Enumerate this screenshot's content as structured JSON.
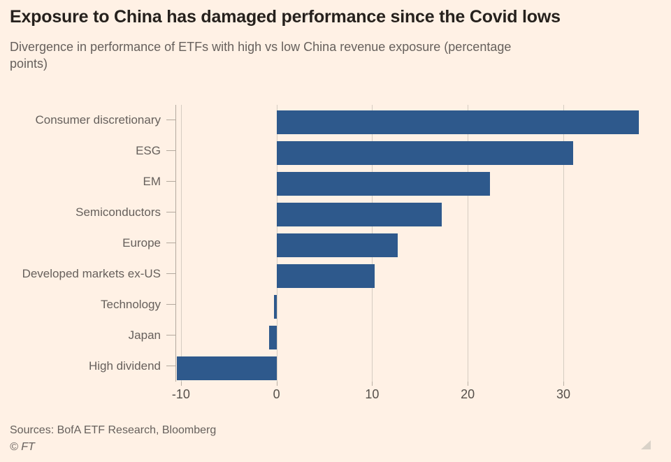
{
  "title": "Exposure to China has damaged performance since the Covid lows",
  "subtitle_lines": [
    "Divergence in performance of ETFs with high vs low China revenue exposure (percentage",
    "points)"
  ],
  "source": "Sources: BofA ETF Research, Bloomberg",
  "credit": "© FT",
  "colors": {
    "background": "#fff1e5",
    "bar": "#2e598c",
    "gridline": "#d5ccc1",
    "axis_line": "#b3a99e",
    "title_text": "#26211d",
    "muted_text": "#66605c",
    "tick_label_text": "#55504b",
    "resize_handle": "#d9d2c8"
  },
  "chart_data": {
    "type": "bar",
    "orientation": "horizontal",
    "title": "Exposure to China has damaged performance since the Covid lows",
    "subtitle": "Divergence in performance of ETFs with high vs low China revenue exposure (percentage points)",
    "categories": [
      "Consumer discretionary",
      "ESG",
      "EM",
      "Semiconductors",
      "Europe",
      "Developed markets ex-US",
      "Technology",
      "Japan",
      "High dividend"
    ],
    "values": [
      37.9,
      31.0,
      22.3,
      17.3,
      12.7,
      10.3,
      -0.3,
      -0.8,
      -10.4
    ],
    "xlabel": "",
    "ylabel": "",
    "xlim": [
      -10.5,
      39.8
    ],
    "xticks": [
      -10,
      0,
      10,
      20,
      30
    ],
    "grid": "vertical-behind-bars",
    "legend": "none",
    "bar_color": "#2e598c"
  }
}
